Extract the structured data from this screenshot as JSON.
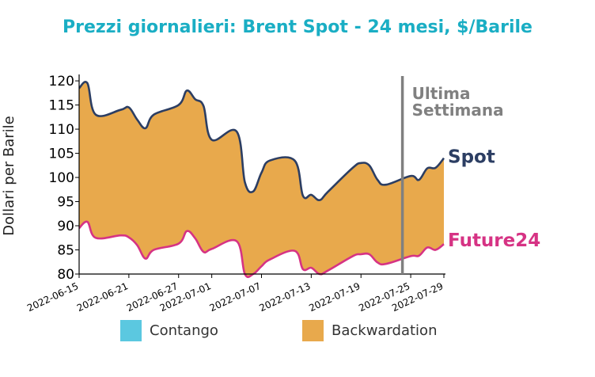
{
  "chart_data": {
    "type": "area",
    "title": "Prezzi giornalieri: Brent Spot - 24 mesi, $/Barile",
    "xlabel": "",
    "ylabel": "Dollari per Barile",
    "ylim": [
      80,
      121
    ],
    "yticks": [
      80,
      85,
      90,
      95,
      100,
      105,
      110,
      115,
      120
    ],
    "x": [
      "2022-06-15",
      "2022-06-16",
      "2022-06-17",
      "2022-06-20",
      "2022-06-21",
      "2022-06-22",
      "2022-06-23",
      "2022-06-24",
      "2022-06-27",
      "2022-06-28",
      "2022-06-29",
      "2022-06-30",
      "2022-07-01",
      "2022-07-04",
      "2022-07-05",
      "2022-07-06",
      "2022-07-07",
      "2022-07-08",
      "2022-07-11",
      "2022-07-12",
      "2022-07-13",
      "2022-07-14",
      "2022-07-15",
      "2022-07-18",
      "2022-07-19",
      "2022-07-20",
      "2022-07-21",
      "2022-07-22",
      "2022-07-25",
      "2022-07-26",
      "2022-07-27",
      "2022-07-28",
      "2022-07-29"
    ],
    "xticks": [
      "2022-06-15",
      "2022-06-21",
      "2022-06-27",
      "2022-07-01",
      "2022-07-07",
      "2022-07-13",
      "2022-07-19",
      "2022-07-25",
      "2022-07-29"
    ],
    "series": [
      {
        "name": "Spot",
        "color": "#2c3e63",
        "values": [
          118.5,
          119.5,
          113.0,
          114.0,
          114.5,
          112.0,
          110.2,
          113.0,
          115.0,
          118.0,
          116.2,
          114.8,
          107.8,
          109.5,
          99.0,
          97.1,
          101.0,
          103.5,
          103.5,
          96.2,
          96.4,
          95.3,
          97.0,
          102.0,
          103.0,
          102.5,
          99.5,
          98.5,
          100.3,
          99.5,
          101.9,
          102.0,
          104.0
        ]
      },
      {
        "name": "Future24",
        "color": "#d63384",
        "values": [
          89.5,
          90.8,
          87.5,
          88.0,
          87.6,
          86.0,
          83.2,
          85.0,
          86.3,
          88.9,
          87.4,
          84.6,
          85.2,
          86.8,
          80.0,
          80.0,
          81.6,
          83.0,
          84.8,
          81.0,
          81.3,
          80.0,
          80.7,
          83.7,
          84.1,
          84.1,
          82.4,
          82.1,
          83.7,
          83.8,
          85.5,
          85.0,
          86.2
        ]
      }
    ],
    "annotation": "Ultima Settimana",
    "annotation_lines": [
      "Ultima",
      "Settimana"
    ],
    "annotation_x": "2022-07-24",
    "legend": [
      {
        "label": "Contango",
        "color": "#5bc8e0"
      },
      {
        "label": "Backwardation",
        "color": "#e8a94c"
      }
    ],
    "colors": {
      "title": "#1aaec4",
      "backwardation": "#e8a94c",
      "contango": "#5bc8e0",
      "spot": "#2c3e63",
      "future": "#d63384",
      "annotation": "#808080"
    },
    "grid": false,
    "legend_position": "bottom"
  }
}
